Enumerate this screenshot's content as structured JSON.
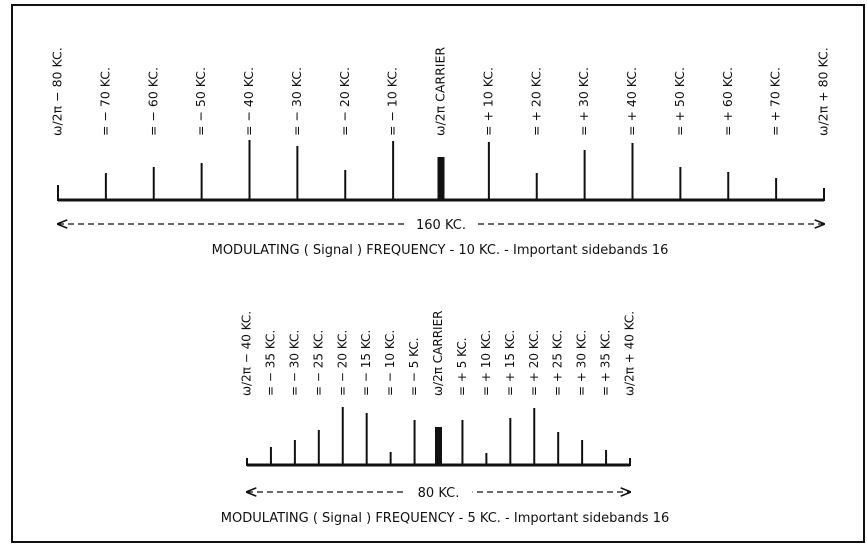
{
  "panels": [
    {
      "labels": [
        "ω/2π − 80 KC.",
        "= − 70 KC.",
        "= − 60 KC.",
        "= − 50 KC.",
        "= − 40 KC.",
        "= − 30 KC.",
        "= − 20 KC.",
        "= − 10 KC.",
        "ω/2π CARRIER",
        "= + 10 KC.",
        "= + 20 KC.",
        "= + 30 KC.",
        "= + 40 KC.",
        "= + 50 KC.",
        "= + 60 KC.",
        "= + 70 KC.",
        "ω/2π + 80 KC."
      ],
      "span_label": "160 KC.",
      "caption": "MODULATING ( Signal ) FREQUENCY - 10 KC. - Important sidebands 16"
    },
    {
      "labels": [
        "ω/2π − 40 KC.",
        "= − 35 KC.",
        "= − 30 KC.",
        "= − 25 KC.",
        "= − 20 KC.",
        "= − 15 KC.",
        "= − 10 KC.",
        "= − 5 KC.",
        "ω/2π CARRIER",
        "= + 5 KC.",
        "= + 10 KC.",
        "= + 15 KC.",
        "= + 20 KC.",
        "= + 25 KC.",
        "= + 30 KC.",
        "= + 35 KC.",
        "ω/2π + 40 KC."
      ],
      "span_label": "80 KC.",
      "caption": "MODULATING ( Signal ) FREQUENCY - 5 KC. - Important sidebands 16"
    }
  ]
}
